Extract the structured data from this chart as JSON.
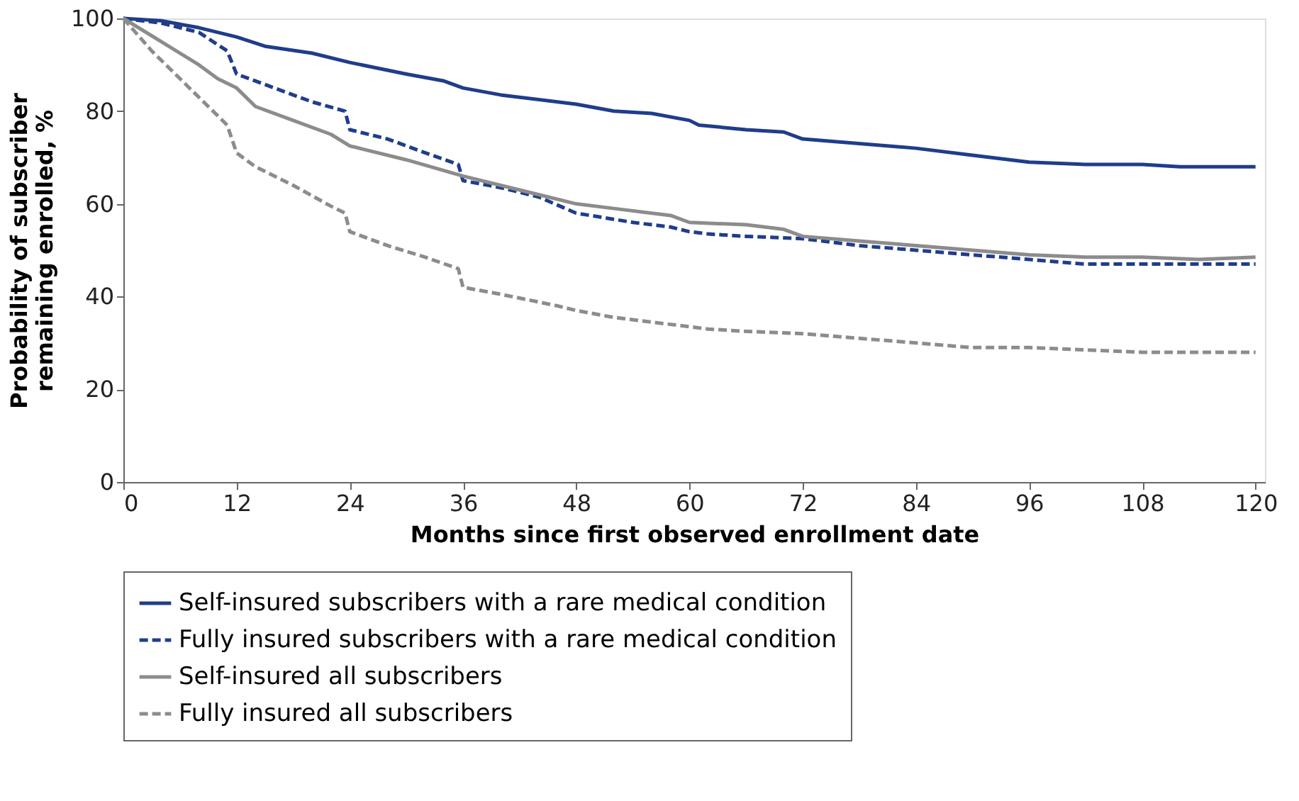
{
  "chart_data": {
    "type": "line",
    "xlabel": "Months since first observed enrollment date",
    "ylabel": "Probability of subscriber\nremaining enrolled, %",
    "xlim": [
      0,
      121
    ],
    "xticks": [
      0,
      12,
      24,
      36,
      48,
      60,
      72,
      84,
      96,
      108,
      120
    ],
    "ylim": [
      0,
      100
    ],
    "yticks": [
      0,
      20,
      40,
      60,
      80,
      100
    ],
    "grid": false,
    "legend": "bottom",
    "marker": "none",
    "series": [
      {
        "name": "Self-insured subscribers with a rare medical condition",
        "color": "#1f3d8a",
        "line_style": "solid",
        "x": [
          0,
          4,
          8,
          12,
          15,
          20,
          24,
          30,
          34,
          36,
          40,
          48,
          52,
          56,
          60,
          61,
          66,
          70,
          72,
          84,
          90,
          96,
          102,
          108,
          112,
          120
        ],
        "values": [
          100,
          99.5,
          98,
          96,
          94,
          92.5,
          90.5,
          88,
          86.5,
          85,
          83.5,
          81.5,
          80,
          79.5,
          78,
          77,
          76,
          75.5,
          74,
          72,
          70.5,
          69,
          68.5,
          68.5,
          68,
          68
        ]
      },
      {
        "name": "Fully insured subscribers with a rare medical condition",
        "color": "#1f3d8a",
        "line_style": "dashed",
        "x": [
          0,
          4,
          8,
          11,
          12,
          16,
          20,
          23.5,
          24,
          28,
          32,
          35.5,
          36,
          40,
          44,
          48,
          54,
          58,
          60,
          62,
          66,
          72,
          78,
          84,
          90,
          96,
          102,
          108,
          120
        ],
        "values": [
          100,
          99,
          97,
          93,
          88,
          85,
          82,
          80,
          76,
          74,
          71,
          68.5,
          65,
          63.5,
          61.5,
          58,
          56,
          55,
          54,
          53.5,
          53,
          52.5,
          51,
          50,
          49,
          48,
          47,
          47,
          47
        ]
      },
      {
        "name": "Self-insured all subscribers",
        "color": "#8c8c8c",
        "line_style": "solid",
        "x": [
          0,
          4,
          8,
          10,
          12,
          14,
          18,
          22,
          24,
          30,
          36,
          42,
          48,
          52,
          56,
          58,
          60,
          66,
          70,
          72,
          78,
          84,
          90,
          96,
          102,
          108,
          114,
          120
        ],
        "values": [
          100,
          95,
          90,
          87,
          85,
          81,
          78,
          75,
          72.5,
          69.5,
          66,
          63,
          60,
          59,
          58,
          57.5,
          56,
          55.5,
          54.5,
          53,
          52,
          51,
          50,
          49,
          48.5,
          48.5,
          48,
          48.5
        ]
      },
      {
        "name": "Fully insured all subscribers",
        "color": "#8c8c8c",
        "line_style": "dashed",
        "x": [
          0,
          3,
          6,
          9,
          11,
          12,
          14,
          18,
          22,
          23.5,
          24,
          28,
          32,
          35.5,
          36,
          40,
          46,
          48,
          52,
          58,
          60,
          62,
          66,
          72,
          78,
          84,
          90,
          96,
          102,
          108,
          114,
          120
        ],
        "values": [
          100,
          93,
          87,
          81,
          77,
          71,
          68,
          64,
          59.5,
          58,
          54,
          51,
          48.5,
          46,
          42,
          40.5,
          38,
          37,
          35.5,
          34,
          33.5,
          33,
          32.5,
          32,
          31,
          30,
          29,
          29,
          28.5,
          28,
          28,
          28
        ]
      }
    ]
  }
}
